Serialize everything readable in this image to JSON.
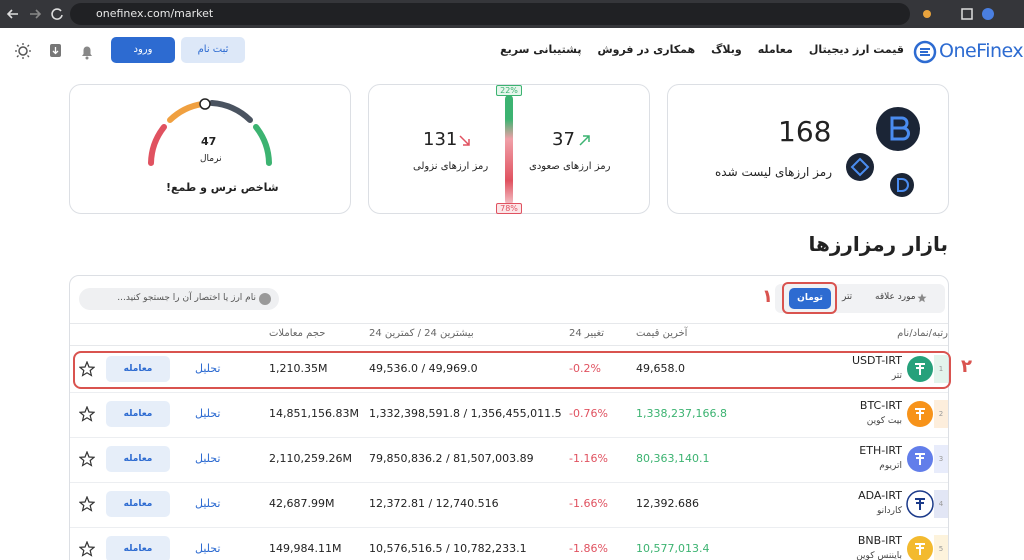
{
  "browser": {
    "url": "onefinex.com/market"
  },
  "nav": {
    "logo": "OneFinex",
    "links": [
      "قیمت ارز دیجیتال",
      "معامله",
      "وبلاگ",
      "همکاری در فروش",
      "پشتیبانی سریع"
    ],
    "signup": "ثبت نام",
    "login": "ورود"
  },
  "cards": {
    "listed": {
      "count": "168",
      "label": "رمز ارزهای لیست شده"
    },
    "market": {
      "up_count": "37",
      "up_label": "رمز ارزهای صعودی",
      "down_count": "131",
      "down_label": "رمز ارزهای نزولی",
      "up_percent": "22%",
      "down_percent": "78%"
    },
    "fear_greed": {
      "value": "47",
      "status": "نرمال",
      "label": "شاخص ترس و طمع!"
    }
  },
  "heading": "بازار رمزارزها",
  "tabs": [
    "مورد علاقه",
    "تتر",
    "تومان"
  ],
  "search_placeholder": "نام ارز یا اختصار آن را جستجو کنید...",
  "annotations": [
    "١",
    "٢"
  ],
  "table": {
    "headers": [
      "رتبه/نماد/نام",
      "آخرین قیمت",
      "تغییر 24",
      "بیشترین 24 / کمترین 24",
      "حجم معاملات"
    ],
    "analysis": "تحلیل",
    "trade": "معامله",
    "rows": [
      {
        "rank": "1",
        "symbol": "USDT-IRT",
        "name": "تتر",
        "price": "49,658.0",
        "change": "-0.2%",
        "high_low": "49,536.0 / 49,969.0",
        "volume": "1,210.35M",
        "price_color": "#222222",
        "icon_color": "#26a17b",
        "badge_color": "#e3f4ec"
      },
      {
        "rank": "2",
        "symbol": "BTC-IRT",
        "name": "بیت کوین",
        "price": "1,338,237,166.8",
        "change": "-0.76%",
        "high_low": "1,332,398,591.8 / 1,356,455,011.5",
        "volume": "14,851,156.83M",
        "price_color": "#3cb371",
        "icon_color": "#f7931a",
        "badge_color": "#fdeedc"
      },
      {
        "rank": "3",
        "symbol": "ETH-IRT",
        "name": "اتریوم",
        "price": "80,363,140.1",
        "change": "-1.16%",
        "high_low": "79,850,836.2 / 81,507,003.89",
        "volume": "2,110,259.26M",
        "price_color": "#3cb371",
        "icon_color": "#627eea",
        "badge_color": "#e8ecfb"
      },
      {
        "rank": "4",
        "symbol": "ADA-IRT",
        "name": "کاردانو",
        "price": "12,392.686",
        "change": "-1.66%",
        "high_low": "12,372.81 / 12,740.516",
        "volume": "42,687.99M",
        "price_color": "#222222",
        "icon_color": "#1b3a8a",
        "badge_color": "#e2e6f5"
      },
      {
        "rank": "5",
        "symbol": "BNB-IRT",
        "name": "بایننس کوین",
        "price": "10,577,013.4",
        "change": "-1.86%",
        "high_low": "10,576,516.5 / 10,782,233.1",
        "volume": "149,984.11M",
        "price_color": "#3cb371",
        "icon_color": "#f3ba2f",
        "badge_color": "#fdf3dc"
      }
    ]
  }
}
